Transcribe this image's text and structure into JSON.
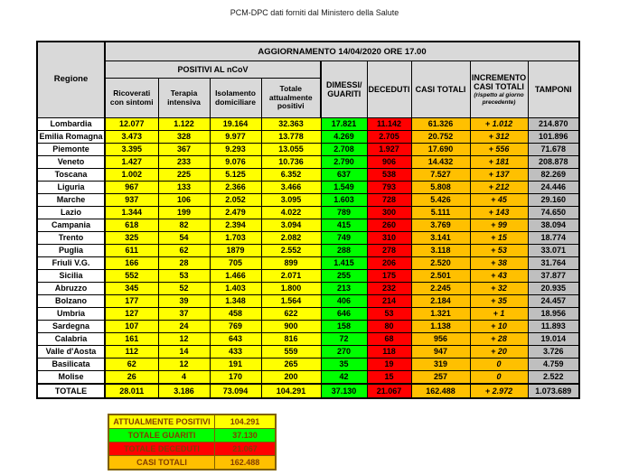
{
  "title": "PCM-DPC dati forniti dal Ministero della Salute",
  "colors": {
    "positivi_yellow": "#FFFF00",
    "guariti_green": "#00FF00",
    "deceduti_red": "#FF0000",
    "casi_orange": "#FFC000",
    "header_gray": "#D9D9D9",
    "tamponi_silver": "#BFBFBF",
    "deceduti_text": "#C00000",
    "summary_text": "#833C00",
    "summary_border": "#7F6000"
  },
  "table": {
    "update_header": "AGGIORNAMENTO 14/04/2020 ORE 17.00",
    "col_region": "Regione",
    "group_positivi": "POSITIVI AL nCoV",
    "columns": [
      "Ricoverati con sintomi",
      "Terapia intensiva",
      "Isolamento domiciliare",
      "Totale attualmente positivi",
      "DIMESSI/ GUARITI",
      "DECEDUTI",
      "CASI TOTALI",
      "INCREMENTO CASI TOTALI",
      "TAMPONI"
    ],
    "incremento_note": "(rispetto al giorno precedente)",
    "rows": [
      {
        "region": "Lombardia",
        "values": [
          "12.077",
          "1.122",
          "19.164",
          "32.363",
          "17.821",
          "11.142",
          "61.326",
          "+ 1.012",
          "214.870"
        ]
      },
      {
        "region": "Emilia Romagna",
        "values": [
          "3.473",
          "328",
          "9.977",
          "13.778",
          "4.269",
          "2.705",
          "20.752",
          "+ 312",
          "101.896"
        ]
      },
      {
        "region": "Piemonte",
        "values": [
          "3.395",
          "367",
          "9.293",
          "13.055",
          "2.708",
          "1.927",
          "17.690",
          "+ 556",
          "71.678"
        ]
      },
      {
        "region": "Veneto",
        "values": [
          "1.427",
          "233",
          "9.076",
          "10.736",
          "2.790",
          "906",
          "14.432",
          "+ 181",
          "208.878"
        ]
      },
      {
        "region": "Toscana",
        "values": [
          "1.002",
          "225",
          "5.125",
          "6.352",
          "637",
          "538",
          "7.527",
          "+ 137",
          "82.269"
        ]
      },
      {
        "region": "Liguria",
        "values": [
          "967",
          "133",
          "2.366",
          "3.466",
          "1.549",
          "793",
          "5.808",
          "+ 212",
          "24.446"
        ]
      },
      {
        "region": "Marche",
        "values": [
          "937",
          "106",
          "2.052",
          "3.095",
          "1.603",
          "728",
          "5.426",
          "+ 45",
          "29.160"
        ]
      },
      {
        "region": "Lazio",
        "values": [
          "1.344",
          "199",
          "2.479",
          "4.022",
          "789",
          "300",
          "5.111",
          "+ 143",
          "74.650"
        ]
      },
      {
        "region": "Campania",
        "values": [
          "618",
          "82",
          "2.394",
          "3.094",
          "415",
          "260",
          "3.769",
          "+ 99",
          "38.094"
        ]
      },
      {
        "region": "Trento",
        "values": [
          "325",
          "54",
          "1.703",
          "2.082",
          "749",
          "310",
          "3.141",
          "+ 15",
          "18.774"
        ]
      },
      {
        "region": "Puglia",
        "values": [
          "611",
          "62",
          "1879",
          "2.552",
          "288",
          "278",
          "3.118",
          "+ 53",
          "33.071"
        ]
      },
      {
        "region": "Friuli V.G.",
        "values": [
          "166",
          "28",
          "705",
          "899",
          "1.415",
          "206",
          "2.520",
          "+ 38",
          "31.764"
        ]
      },
      {
        "region": "Sicilia",
        "values": [
          "552",
          "53",
          "1.466",
          "2.071",
          "255",
          "175",
          "2.501",
          "+ 43",
          "37.877"
        ]
      },
      {
        "region": "Abruzzo",
        "values": [
          "345",
          "52",
          "1.403",
          "1.800",
          "213",
          "232",
          "2.245",
          "+ 32",
          "20.935"
        ]
      },
      {
        "region": "Bolzano",
        "values": [
          "177",
          "39",
          "1.348",
          "1.564",
          "406",
          "214",
          "2.184",
          "+ 35",
          "24.457"
        ]
      },
      {
        "region": "Umbria",
        "values": [
          "127",
          "37",
          "458",
          "622",
          "646",
          "53",
          "1.321",
          "+ 1",
          "18.956"
        ]
      },
      {
        "region": "Sardegna",
        "values": [
          "107",
          "24",
          "769",
          "900",
          "158",
          "80",
          "1.138",
          "+ 10",
          "11.893"
        ]
      },
      {
        "region": "Calabria",
        "values": [
          "161",
          "12",
          "643",
          "816",
          "72",
          "68",
          "956",
          "+ 28",
          "19.014"
        ]
      },
      {
        "region": "Valle d'Aosta",
        "values": [
          "112",
          "14",
          "433",
          "559",
          "270",
          "118",
          "947",
          "+ 20",
          "3.726"
        ]
      },
      {
        "region": "Basilicata",
        "values": [
          "62",
          "12",
          "191",
          "265",
          "35",
          "19",
          "319",
          "0",
          "4.759"
        ]
      },
      {
        "region": "Molise",
        "values": [
          "26",
          "4",
          "170",
          "200",
          "42",
          "15",
          "257",
          "0",
          "2.522"
        ]
      }
    ],
    "total_row": {
      "region": "TOTALE",
      "values": [
        "28.011",
        "3.186",
        "73.094",
        "104.291",
        "37.130",
        "21.067",
        "162.488",
        "+ 2.972",
        "1.073.689"
      ]
    }
  },
  "summary": {
    "rows": [
      {
        "label": "ATTUALMENTE POSITIVI",
        "value": "104.291",
        "color": "#FFFF00"
      },
      {
        "label": "TOTALE GUARITI",
        "value": "37.130",
        "color": "#00FF00"
      },
      {
        "label": "TOTALE DECEDUTI",
        "value": "21.067",
        "color": "#FF0000"
      },
      {
        "label": "CASI TOTALI",
        "value": "162.488",
        "color": "#FFC000"
      }
    ]
  }
}
